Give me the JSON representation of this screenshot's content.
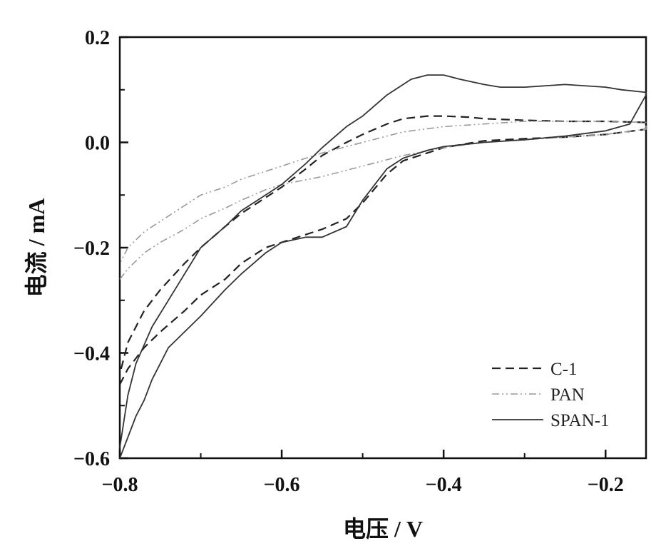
{
  "chart_data": {
    "type": "line",
    "title": "",
    "xlabel": "电压 / V",
    "ylabel": "电流 / mA",
    "xlim": [
      -0.8,
      -0.15
    ],
    "ylim": [
      -0.6,
      0.2
    ],
    "xticks": [
      -0.8,
      -0.6,
      -0.4,
      -0.2
    ],
    "xtick_labels": [
      "−0.8",
      "−0.6",
      "−0.4",
      "−0.2"
    ],
    "yticks": [
      -0.6,
      -0.4,
      -0.2,
      0.0,
      0.2
    ],
    "ytick_labels": [
      "−0.6",
      "−0.4",
      "−0.2",
      "0.0",
      "0.2"
    ],
    "grid": false,
    "legend_position": "bottom-right",
    "series": [
      {
        "name": "C-1",
        "style": "dashed",
        "color": "#222222",
        "x": [
          -0.8,
          -0.79,
          -0.77,
          -0.75,
          -0.72,
          -0.7,
          -0.67,
          -0.65,
          -0.62,
          -0.6,
          -0.57,
          -0.55,
          -0.52,
          -0.5,
          -0.47,
          -0.45,
          -0.42,
          -0.4,
          -0.37,
          -0.35,
          -0.3,
          -0.25,
          -0.2,
          -0.15,
          -0.15,
          -0.2,
          -0.25,
          -0.3,
          -0.35,
          -0.37,
          -0.4,
          -0.42,
          -0.45,
          -0.47,
          -0.5,
          -0.52,
          -0.55,
          -0.57,
          -0.6,
          -0.62,
          -0.65,
          -0.67,
          -0.7,
          -0.72,
          -0.75,
          -0.77,
          -0.79,
          -0.8
        ],
        "y": [
          -0.46,
          -0.43,
          -0.39,
          -0.36,
          -0.32,
          -0.29,
          -0.26,
          -0.23,
          -0.2,
          -0.19,
          -0.175,
          -0.165,
          -0.145,
          -0.115,
          -0.06,
          -0.035,
          -0.02,
          -0.01,
          -0.002,
          0.003,
          0.007,
          0.01,
          0.015,
          0.025,
          0.038,
          0.04,
          0.04,
          0.042,
          0.045,
          0.048,
          0.05,
          0.05,
          0.045,
          0.035,
          0.015,
          0.0,
          -0.025,
          -0.05,
          -0.085,
          -0.105,
          -0.135,
          -0.16,
          -0.2,
          -0.23,
          -0.28,
          -0.32,
          -0.38,
          -0.44
        ]
      },
      {
        "name": "PAN",
        "style": "dash-dot-dot",
        "color": "#999999",
        "x": [
          -0.8,
          -0.79,
          -0.77,
          -0.75,
          -0.72,
          -0.7,
          -0.67,
          -0.65,
          -0.62,
          -0.6,
          -0.55,
          -0.5,
          -0.45,
          -0.4,
          -0.35,
          -0.3,
          -0.25,
          -0.2,
          -0.15,
          -0.15,
          -0.2,
          -0.25,
          -0.3,
          -0.35,
          -0.4,
          -0.45,
          -0.5,
          -0.55,
          -0.57,
          -0.6,
          -0.62,
          -0.65,
          -0.67,
          -0.7,
          -0.72,
          -0.75,
          -0.77,
          -0.79,
          -0.8
        ],
        "y": [
          -0.26,
          -0.24,
          -0.21,
          -0.19,
          -0.165,
          -0.145,
          -0.125,
          -0.11,
          -0.09,
          -0.08,
          -0.065,
          -0.045,
          -0.025,
          -0.01,
          0.0,
          0.005,
          0.01,
          0.015,
          0.025,
          0.038,
          0.04,
          0.04,
          0.04,
          0.035,
          0.03,
          0.02,
          0.0,
          -0.02,
          -0.03,
          -0.045,
          -0.055,
          -0.07,
          -0.085,
          -0.1,
          -0.12,
          -0.15,
          -0.17,
          -0.2,
          -0.23
        ]
      },
      {
        "name": "SPAN-1",
        "style": "solid",
        "color": "#333333",
        "x": [
          -0.8,
          -0.79,
          -0.78,
          -0.77,
          -0.76,
          -0.75,
          -0.74,
          -0.72,
          -0.7,
          -0.67,
          -0.65,
          -0.62,
          -0.6,
          -0.57,
          -0.55,
          -0.52,
          -0.5,
          -0.47,
          -0.45,
          -0.42,
          -0.4,
          -0.35,
          -0.3,
          -0.25,
          -0.2,
          -0.17,
          -0.15,
          -0.15,
          -0.18,
          -0.2,
          -0.25,
          -0.3,
          -0.33,
          -0.35,
          -0.38,
          -0.4,
          -0.42,
          -0.44,
          -0.47,
          -0.5,
          -0.52,
          -0.55,
          -0.57,
          -0.6,
          -0.62,
          -0.65,
          -0.67,
          -0.7,
          -0.72,
          -0.74,
          -0.76,
          -0.78,
          -0.79,
          -0.8
        ],
        "y": [
          -0.6,
          -0.56,
          -0.52,
          -0.49,
          -0.45,
          -0.42,
          -0.39,
          -0.36,
          -0.33,
          -0.28,
          -0.25,
          -0.21,
          -0.19,
          -0.18,
          -0.18,
          -0.16,
          -0.11,
          -0.05,
          -0.03,
          -0.015,
          -0.008,
          0.0,
          0.005,
          0.012,
          0.022,
          0.035,
          0.09,
          0.095,
          0.1,
          0.105,
          0.11,
          0.105,
          0.105,
          0.11,
          0.12,
          0.128,
          0.128,
          0.12,
          0.09,
          0.05,
          0.03,
          -0.01,
          -0.04,
          -0.08,
          -0.1,
          -0.13,
          -0.16,
          -0.2,
          -0.25,
          -0.3,
          -0.35,
          -0.42,
          -0.48,
          -0.58
        ]
      }
    ]
  }
}
